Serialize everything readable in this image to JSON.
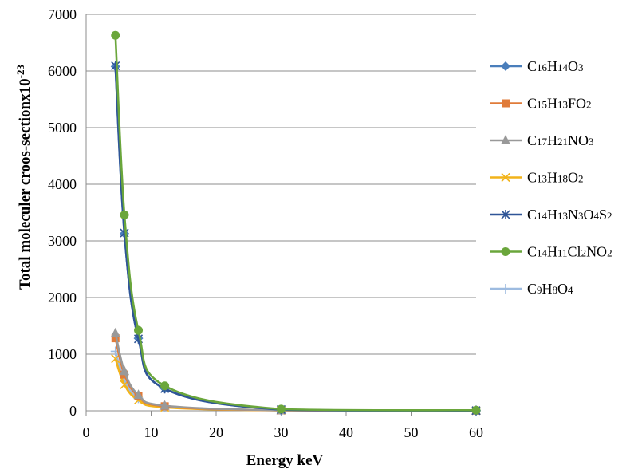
{
  "chart_data": {
    "type": "line",
    "title": "",
    "xlabel": "Energy keV",
    "ylabel_main": "Total moleculer croos-sectionx10",
    "ylabel_sup": "-23",
    "xlim": [
      0,
      60
    ],
    "ylim": [
      0,
      7000
    ],
    "xticks": [
      0,
      10,
      20,
      30,
      40,
      50,
      60
    ],
    "yticks": [
      0,
      1000,
      2000,
      3000,
      4000,
      5000,
      6000,
      7000
    ],
    "grid": "horizontal",
    "legend_position": "right",
    "x": [
      4.51,
      5.89,
      8.04,
      12.1,
      30.0,
      60.0
    ],
    "series": [
      {
        "name": "C16H14O3",
        "name_parts": [
          [
            "C",
            0
          ],
          [
            "16",
            1
          ],
          [
            "H",
            0
          ],
          [
            "14",
            1
          ],
          [
            "O",
            0
          ],
          [
            "3",
            1
          ]
        ],
        "color": "#4a7ebb",
        "marker": "diamond",
        "values": [
          6080,
          3130,
          1280,
          390,
          20,
          5
        ]
      },
      {
        "name": "C15H13FO2",
        "name_parts": [
          [
            "C",
            0
          ],
          [
            "15",
            1
          ],
          [
            "H",
            0
          ],
          [
            "13",
            1
          ],
          [
            "FO",
            0
          ],
          [
            "2",
            1
          ]
        ],
        "color": "#e07b39",
        "marker": "square",
        "values": [
          1280,
          640,
          260,
          80,
          8,
          2
        ]
      },
      {
        "name": "C17H21NO3",
        "name_parts": [
          [
            "C",
            0
          ],
          [
            "17",
            1
          ],
          [
            "H",
            0
          ],
          [
            "21",
            1
          ],
          [
            "NO",
            0
          ],
          [
            "3",
            1
          ]
        ],
        "color": "#999999",
        "marker": "triangle",
        "values": [
          1370,
          700,
          280,
          90,
          9,
          2
        ]
      },
      {
        "name": "C13H18O2",
        "name_parts": [
          [
            "C",
            0
          ],
          [
            "13",
            1
          ],
          [
            "H",
            0
          ],
          [
            "18",
            1
          ],
          [
            "O",
            0
          ],
          [
            "2",
            1
          ]
        ],
        "color": "#f2b31a",
        "marker": "x",
        "values": [
          920,
          460,
          190,
          60,
          6,
          1
        ]
      },
      {
        "name": "C14H13N3O4S2",
        "name_parts": [
          [
            "C",
            0
          ],
          [
            "14",
            1
          ],
          [
            "H",
            0
          ],
          [
            "13",
            1
          ],
          [
            "N",
            0
          ],
          [
            "3",
            1
          ],
          [
            "O",
            0
          ],
          [
            "4",
            1
          ],
          [
            "S",
            0
          ],
          [
            "2",
            1
          ]
        ],
        "color": "#2f5597",
        "marker": "star",
        "values": [
          6090,
          3140,
          1270,
          390,
          22,
          5
        ]
      },
      {
        "name": "C14H11Cl2NO2",
        "name_parts": [
          [
            "C",
            0
          ],
          [
            "14",
            1
          ],
          [
            "H",
            0
          ],
          [
            "11",
            1
          ],
          [
            "Cl",
            0
          ],
          [
            "2",
            1
          ],
          [
            "NO",
            0
          ],
          [
            "2",
            1
          ]
        ],
        "color": "#6aa63b",
        "marker": "circle",
        "values": [
          6630,
          3460,
          1420,
          440,
          30,
          10
        ]
      },
      {
        "name": "C9H8O4",
        "name_parts": [
          [
            "C",
            0
          ],
          [
            "9",
            1
          ],
          [
            "H",
            0
          ],
          [
            "8",
            1
          ],
          [
            "O",
            0
          ],
          [
            "4",
            1
          ]
        ],
        "color": "#9dbbe0",
        "marker": "plus",
        "values": [
          1050,
          540,
          220,
          70,
          7,
          1
        ]
      }
    ]
  }
}
